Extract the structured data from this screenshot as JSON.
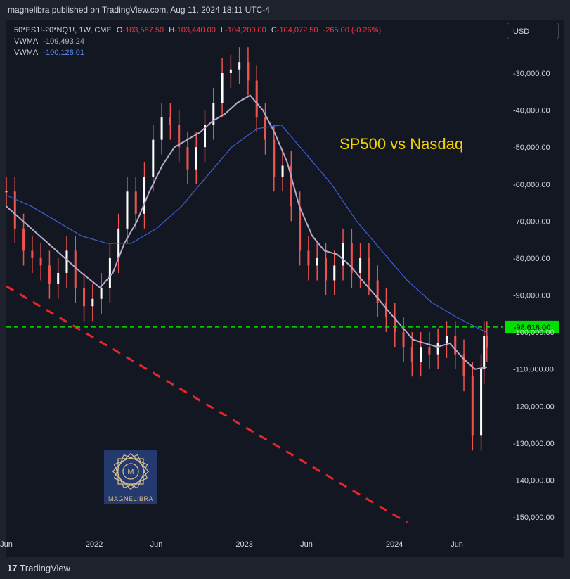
{
  "header": {
    "publish_text": "magnelibra published on TradingView.com, Aug 11, 2024 18:11 UTC-4"
  },
  "legend": {
    "symbol": "50*ES1!-20*NQ1!, 1W, CME",
    "o_label": "O",
    "o_value": "-103,587.50",
    "h_label": "H",
    "h_value": "-103,440.00",
    "l_label": "L",
    "l_value": "-104,200.00",
    "c_label": "C",
    "c_value": "-104,072.50",
    "change": "-265.00 (-0.26%)",
    "vwma1_label": "VWMA",
    "vwma1_value": "-109,493.24",
    "vwma2_label": "VWMA",
    "vwma2_value": "-100,128.01"
  },
  "currency_button": "USD",
  "annotation": "SP500 vs Nasdaq",
  "logo_text": "MAGNELIBRA",
  "footer": {
    "brand": "TradingView"
  },
  "colors": {
    "background": "#131722",
    "candle": "#ef5350",
    "vwma_light": "#b8a9c9",
    "vwma_blue": "#3f5fd6",
    "support_line": "#00e000",
    "trend_line": "#e8262a",
    "annotation": "#f5d300"
  },
  "chart_data": {
    "type": "line",
    "y_axis": {
      "ticks": [
        -30000,
        -40000,
        -50000,
        -60000,
        -70000,
        -80000,
        -90000,
        -100000,
        -110000,
        -120000,
        -130000,
        -140000,
        -150000
      ],
      "tick_labels": [
        "-30,000.00",
        "-40,000.00",
        "-50,000.00",
        "-60,000.00",
        "-70,000.00",
        "-80,000.00",
        "-90,000.00",
        "-100,000.00",
        "-110,000.00",
        "-120,000.00",
        "-130,000.00",
        "-140,000.00",
        "-150,000.00"
      ]
    },
    "x_axis": {
      "range": [
        "2021-06-01",
        "2024-09-20"
      ],
      "ticks": [
        {
          "date": "2021-06-01",
          "label": "Jun"
        },
        {
          "date": "2022-01-01",
          "label": "2022"
        },
        {
          "date": "2022-06-01",
          "label": "Jun"
        },
        {
          "date": "2023-01-01",
          "label": "2023"
        },
        {
          "date": "2023-06-01",
          "label": "Jun"
        },
        {
          "date": "2024-01-01",
          "label": "2024"
        },
        {
          "date": "2024-06-01",
          "label": "Jun"
        }
      ]
    },
    "price_line": {
      "value": -98618,
      "label": "-98,618.00"
    },
    "trend_line": [
      [
        "2021-06-01",
        -87600
      ],
      [
        "2024-02-01",
        -151500
      ]
    ],
    "series": [
      {
        "style": "candles",
        "color": "#ef5350",
        "points": [
          [
            "2021-06-01",
            -62000
          ],
          [
            "2021-06-22",
            -72000
          ],
          [
            "2021-07-13",
            -78000
          ],
          [
            "2021-08-03",
            -80000
          ],
          [
            "2021-08-24",
            -82000
          ],
          [
            "2021-09-14",
            -87000
          ],
          [
            "2021-10-05",
            -84000
          ],
          [
            "2021-10-26",
            -78000
          ],
          [
            "2021-11-16",
            -88000
          ],
          [
            "2021-12-07",
            -93000
          ],
          [
            "2021-12-28",
            -91000
          ],
          [
            "2022-01-18",
            -88000
          ],
          [
            "2022-02-08",
            -80000
          ],
          [
            "2022-03-01",
            -72000
          ],
          [
            "2022-03-22",
            -62000
          ],
          [
            "2022-04-12",
            -68000
          ],
          [
            "2022-05-03",
            -58000
          ],
          [
            "2022-05-24",
            -48000
          ],
          [
            "2022-06-14",
            -42000
          ],
          [
            "2022-07-05",
            -44000
          ],
          [
            "2022-07-26",
            -50000
          ],
          [
            "2022-08-16",
            -56000
          ],
          [
            "2022-09-06",
            -50000
          ],
          [
            "2022-09-27",
            -44000
          ],
          [
            "2022-10-18",
            -38000
          ],
          [
            "2022-11-08",
            -30000
          ],
          [
            "2022-11-29",
            -29000
          ],
          [
            "2022-12-20",
            -27000
          ],
          [
            "2023-01-10",
            -32000
          ],
          [
            "2023-01-31",
            -42000
          ],
          [
            "2023-02-21",
            -48000
          ],
          [
            "2023-03-14",
            -58000
          ],
          [
            "2023-04-04",
            -55000
          ],
          [
            "2023-04-25",
            -66000
          ],
          [
            "2023-05-16",
            -78000
          ],
          [
            "2023-06-06",
            -82000
          ],
          [
            "2023-06-27",
            -80000
          ],
          [
            "2023-07-18",
            -86000
          ],
          [
            "2023-08-08",
            -82000
          ],
          [
            "2023-08-29",
            -76000
          ],
          [
            "2023-09-19",
            -84000
          ],
          [
            "2023-10-10",
            -80000
          ],
          [
            "2023-10-31",
            -86000
          ],
          [
            "2023-11-21",
            -92000
          ],
          [
            "2023-12-12",
            -96000
          ],
          [
            "2024-01-02",
            -100000
          ],
          [
            "2024-01-23",
            -104000
          ],
          [
            "2024-02-13",
            -108000
          ],
          [
            "2024-03-05",
            -104000
          ],
          [
            "2024-03-26",
            -106000
          ],
          [
            "2024-04-16",
            -103000
          ],
          [
            "2024-05-07",
            -101000
          ],
          [
            "2024-05-28",
            -106000
          ],
          [
            "2024-06-18",
            -112000
          ],
          [
            "2024-07-09",
            -128000
          ],
          [
            "2024-07-30",
            -110000
          ],
          [
            "2024-08-06",
            -101000
          ],
          [
            "2024-08-13",
            -104072
          ]
        ]
      },
      {
        "style": "line",
        "color": "#b8a9c9",
        "points": [
          [
            "2021-06-01",
            -66000
          ],
          [
            "2021-08-01",
            -72000
          ],
          [
            "2021-10-01",
            -78000
          ],
          [
            "2021-12-01",
            -84000
          ],
          [
            "2022-01-15",
            -88000
          ],
          [
            "2022-02-15",
            -84000
          ],
          [
            "2022-03-15",
            -76000
          ],
          [
            "2022-04-15",
            -70000
          ],
          [
            "2022-05-15",
            -62000
          ],
          [
            "2022-06-15",
            -55000
          ],
          [
            "2022-07-15",
            -50000
          ],
          [
            "2022-08-15",
            -48000
          ],
          [
            "2022-09-15",
            -46000
          ],
          [
            "2022-10-15",
            -43000
          ],
          [
            "2022-11-15",
            -41000
          ],
          [
            "2022-12-15",
            -38000
          ],
          [
            "2023-01-15",
            -36000
          ],
          [
            "2023-02-15",
            -40000
          ],
          [
            "2023-03-15",
            -46000
          ],
          [
            "2023-04-15",
            -54000
          ],
          [
            "2023-05-15",
            -66000
          ],
          [
            "2023-06-15",
            -74000
          ],
          [
            "2023-07-15",
            -78000
          ],
          [
            "2023-08-15",
            -79000
          ],
          [
            "2023-09-15",
            -82000
          ],
          [
            "2023-10-15",
            -86000
          ],
          [
            "2023-11-15",
            -90000
          ],
          [
            "2023-12-15",
            -94000
          ],
          [
            "2024-01-15",
            -98000
          ],
          [
            "2024-02-15",
            -102000
          ],
          [
            "2024-03-15",
            -103000
          ],
          [
            "2024-04-15",
            -104000
          ],
          [
            "2024-05-15",
            -103000
          ],
          [
            "2024-06-15",
            -107000
          ],
          [
            "2024-07-15",
            -110000
          ],
          [
            "2024-08-13",
            -109493
          ]
        ]
      },
      {
        "style": "line",
        "color": "#3f5fd6",
        "points": [
          [
            "2021-06-01",
            -63000
          ],
          [
            "2021-08-01",
            -66000
          ],
          [
            "2021-10-01",
            -70000
          ],
          [
            "2021-12-01",
            -74000
          ],
          [
            "2022-02-01",
            -76000
          ],
          [
            "2022-04-01",
            -76000
          ],
          [
            "2022-06-01",
            -72000
          ],
          [
            "2022-08-01",
            -66000
          ],
          [
            "2022-10-01",
            -58000
          ],
          [
            "2022-12-01",
            -50000
          ],
          [
            "2023-02-01",
            -45000
          ],
          [
            "2023-04-01",
            -44000
          ],
          [
            "2023-06-01",
            -52000
          ],
          [
            "2023-08-01",
            -60000
          ],
          [
            "2023-10-01",
            -70000
          ],
          [
            "2023-12-01",
            -78000
          ],
          [
            "2024-02-01",
            -86000
          ],
          [
            "2024-04-01",
            -92000
          ],
          [
            "2024-06-01",
            -96000
          ],
          [
            "2024-08-13",
            -100128
          ]
        ]
      }
    ]
  }
}
